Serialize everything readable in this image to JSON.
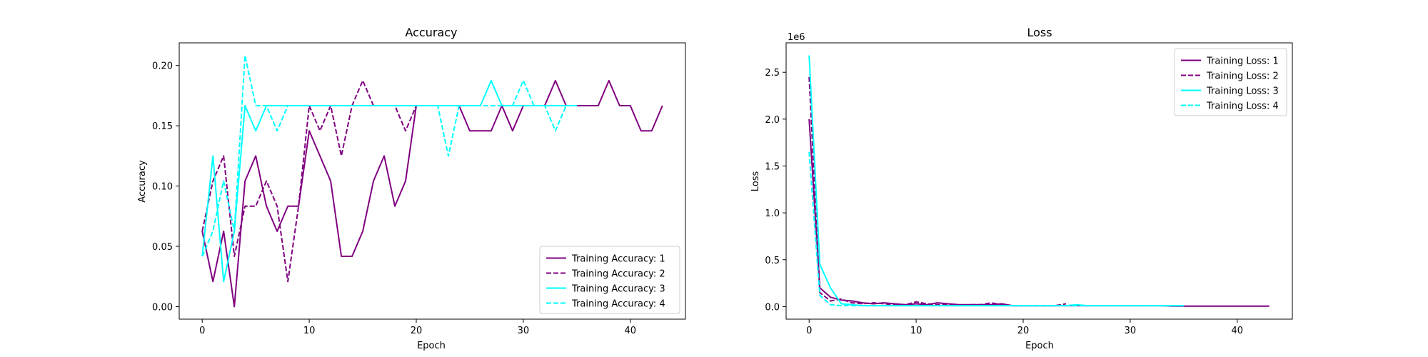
{
  "chart_data": [
    {
      "type": "line",
      "title": "Accuracy",
      "xlabel": "Epoch",
      "ylabel": "Accuracy",
      "xlim": [
        -2.15,
        45.15
      ],
      "ylim": [
        -0.0104,
        0.2188
      ],
      "xticks": [
        0,
        10,
        20,
        30,
        40
      ],
      "yticks": [
        0.0,
        0.05,
        0.1,
        0.15,
        0.2
      ],
      "ytick_labels": [
        "0.00",
        "0.05",
        "0.10",
        "0.15",
        "0.20"
      ],
      "legend_position": "lower-right",
      "series": [
        {
          "name": "Training Accuracy: 1",
          "color": "#800080",
          "dash": "solid",
          "x": [
            0,
            1,
            2,
            3,
            4,
            5,
            6,
            7,
            8,
            9,
            10,
            11,
            12,
            13,
            14,
            15,
            16,
            17,
            18,
            19,
            20,
            21,
            22,
            23,
            24,
            25,
            26,
            27,
            28,
            29,
            30,
            31,
            32,
            33,
            34,
            35,
            36,
            37,
            38,
            39,
            40,
            41,
            42,
            43
          ],
          "y": [
            0.0625,
            0.0208,
            0.0625,
            0.0,
            0.1042,
            0.125,
            0.0833,
            0.0625,
            0.0833,
            0.0833,
            0.1458,
            0.125,
            0.1042,
            0.0417,
            0.0417,
            0.0625,
            0.1042,
            0.125,
            0.0833,
            0.1042,
            0.1667,
            0.1667,
            0.1667,
            0.1667,
            0.1667,
            0.1458,
            0.1458,
            0.1458,
            0.1667,
            0.1458,
            0.1667,
            0.1667,
            0.1667,
            0.1875,
            0.1667,
            0.1667,
            0.1667,
            0.1667,
            0.1875,
            0.1667,
            0.1667,
            0.1458,
            0.1458,
            0.1667
          ]
        },
        {
          "name": "Training Accuracy: 2",
          "color": "#800080",
          "dash": "dashed",
          "x": [
            0,
            1,
            2,
            3,
            4,
            5,
            6,
            7,
            8,
            9,
            10,
            11,
            12,
            13,
            14,
            15,
            16,
            17,
            18,
            19,
            20,
            21,
            22,
            23,
            24
          ],
          "y": [
            0.0625,
            0.1042,
            0.125,
            0.0417,
            0.0833,
            0.0833,
            0.1042,
            0.0833,
            0.0208,
            0.0833,
            0.1667,
            0.1458,
            0.1667,
            0.125,
            0.1667,
            0.1875,
            0.1667,
            0.1667,
            0.1667,
            0.1458,
            0.1667,
            0.1667,
            0.1667,
            0.1667,
            0.1667
          ]
        },
        {
          "name": "Training Accuracy: 3",
          "color": "#00ffff",
          "dash": "solid",
          "x": [
            0,
            1,
            2,
            3,
            4,
            5,
            6,
            7,
            8,
            9,
            10,
            11,
            12,
            13,
            14,
            15,
            16,
            17,
            18,
            19,
            20,
            21,
            22,
            23,
            24,
            25,
            26,
            27,
            28,
            29,
            30,
            31,
            32,
            33,
            34,
            35
          ],
          "y": [
            0.0417,
            0.125,
            0.0208,
            0.0625,
            0.1667,
            0.1458,
            0.1667,
            0.1667,
            0.1667,
            0.1667,
            0.1667,
            0.1667,
            0.1667,
            0.1667,
            0.1667,
            0.1667,
            0.1667,
            0.1667,
            0.1667,
            0.1667,
            0.1667,
            0.1667,
            0.1667,
            0.1667,
            0.1667,
            0.1667,
            0.1667,
            0.1875,
            0.1667,
            0.1667,
            0.1667,
            0.1667,
            0.1667,
            0.1667,
            0.1667,
            0.1667
          ]
        },
        {
          "name": "Training Accuracy: 4",
          "color": "#00ffff",
          "dash": "dashed",
          "x": [
            0,
            1,
            2,
            3,
            4,
            5,
            6,
            7,
            8,
            9,
            10,
            11,
            12,
            13,
            14,
            15,
            16,
            17,
            18,
            19,
            20,
            21,
            22,
            23,
            24,
            25,
            26,
            27,
            28,
            29,
            30,
            31,
            32,
            33,
            34,
            35
          ],
          "y": [
            0.0417,
            0.0625,
            0.1042,
            0.0625,
            0.2083,
            0.1667,
            0.1667,
            0.1458,
            0.1667,
            0.1667,
            0.1667,
            0.1667,
            0.1667,
            0.1667,
            0.1667,
            0.1667,
            0.1667,
            0.1667,
            0.1667,
            0.1667,
            0.1667,
            0.1667,
            0.1667,
            0.125,
            0.1667,
            0.1667,
            0.1667,
            0.1667,
            0.1667,
            0.1667,
            0.1875,
            0.1667,
            0.1667,
            0.1458,
            0.1667,
            0.1667
          ]
        }
      ]
    },
    {
      "type": "line",
      "title": "Loss",
      "xlabel": "Epoch",
      "ylabel": "Loss",
      "y_offset_label": "1e6",
      "xlim": [
        -2.15,
        45.15
      ],
      "ylim": [
        -0.134,
        2.814
      ],
      "xticks": [
        0,
        10,
        20,
        30,
        40
      ],
      "yticks": [
        0.0,
        0.5,
        1.0,
        1.5,
        2.0,
        2.5
      ],
      "ytick_labels": [
        "0.0",
        "0.5",
        "1.0",
        "1.5",
        "2.0",
        "2.5"
      ],
      "legend_position": "upper-right",
      "series": [
        {
          "name": "Training Loss: 1",
          "color": "#800080",
          "dash": "solid",
          "x": [
            0,
            1,
            2,
            3,
            4,
            5,
            6,
            7,
            8,
            9,
            10,
            11,
            12,
            13,
            14,
            15,
            16,
            17,
            18,
            19,
            20,
            21,
            22,
            23,
            24,
            25,
            26,
            27,
            28,
            29,
            30,
            31,
            32,
            33,
            34,
            35,
            36,
            37,
            38,
            39,
            40,
            41,
            42,
            43
          ],
          "y": [
            2.0,
            0.2,
            0.1,
            0.07,
            0.06,
            0.04,
            0.03,
            0.04,
            0.03,
            0.02,
            0.03,
            0.02,
            0.04,
            0.03,
            0.02,
            0.02,
            0.02,
            0.02,
            0.03,
            0.01,
            0.01,
            0.01,
            0.01,
            0.01,
            0.01,
            0.01,
            0.01,
            0.01,
            0.01,
            0.01,
            0.01,
            0.01,
            0.01,
            0.01,
            0.005,
            0.005,
            0.005,
            0.005,
            0.005,
            0.005,
            0.005,
            0.005,
            0.005,
            0.005
          ]
        },
        {
          "name": "Training Loss: 2",
          "color": "#800080",
          "dash": "dashed",
          "x": [
            0,
            1,
            2,
            3,
            4,
            5,
            6,
            7,
            8,
            9,
            10,
            11,
            12,
            13,
            14,
            15,
            16,
            17,
            18,
            19,
            20,
            21,
            22,
            23,
            24
          ],
          "y": [
            2.45,
            0.15,
            0.06,
            0.08,
            0.04,
            0.03,
            0.04,
            0.03,
            0.02,
            0.02,
            0.05,
            0.03,
            0.02,
            0.02,
            0.01,
            0.02,
            0.02,
            0.04,
            0.02,
            0.01,
            0.01,
            0.01,
            0.01,
            0.01,
            0.03
          ]
        },
        {
          "name": "Training Loss: 3",
          "color": "#00ffff",
          "dash": "solid",
          "x": [
            0,
            1,
            2,
            3,
            4,
            5,
            6,
            7,
            8,
            9,
            10,
            11,
            12,
            13,
            14,
            15,
            16,
            17,
            18,
            19,
            20,
            21,
            22,
            23,
            24,
            25,
            26,
            27,
            28,
            29,
            30,
            31,
            32,
            33,
            34,
            35
          ],
          "y": [
            2.68,
            0.45,
            0.2,
            0.03,
            0.02,
            0.01,
            0.01,
            0.01,
            0.01,
            0.01,
            0.01,
            0.01,
            0.01,
            0.01,
            0.01,
            0.01,
            0.01,
            0.01,
            0.01,
            0.01,
            0.01,
            0.01,
            0.01,
            0.01,
            0.01,
            0.02,
            0.01,
            0.01,
            0.01,
            0.01,
            0.01,
            0.01,
            0.01,
            0.01,
            0.01,
            0.01
          ]
        },
        {
          "name": "Training Loss: 4",
          "color": "#00ffff",
          "dash": "dashed",
          "x": [
            0,
            1,
            2,
            3,
            4,
            5,
            6,
            7,
            8,
            9,
            10,
            11,
            12,
            13,
            14,
            15,
            16,
            17,
            18,
            19,
            20,
            21,
            22,
            23,
            24,
            25,
            26,
            27,
            28,
            29,
            30,
            31,
            32,
            33,
            34,
            35
          ],
          "y": [
            1.65,
            0.12,
            0.02,
            0.01,
            0.01,
            0.01,
            0.01,
            0.01,
            0.01,
            0.01,
            0.01,
            0.01,
            0.01,
            0.01,
            0.01,
            0.01,
            0.01,
            0.01,
            0.01,
            0.01,
            0.01,
            0.01,
            0.01,
            0.01,
            0.01,
            0.01,
            0.01,
            0.01,
            0.01,
            0.01,
            0.01,
            0.01,
            0.01,
            0.01,
            0.01,
            0.01
          ]
        }
      ]
    }
  ]
}
